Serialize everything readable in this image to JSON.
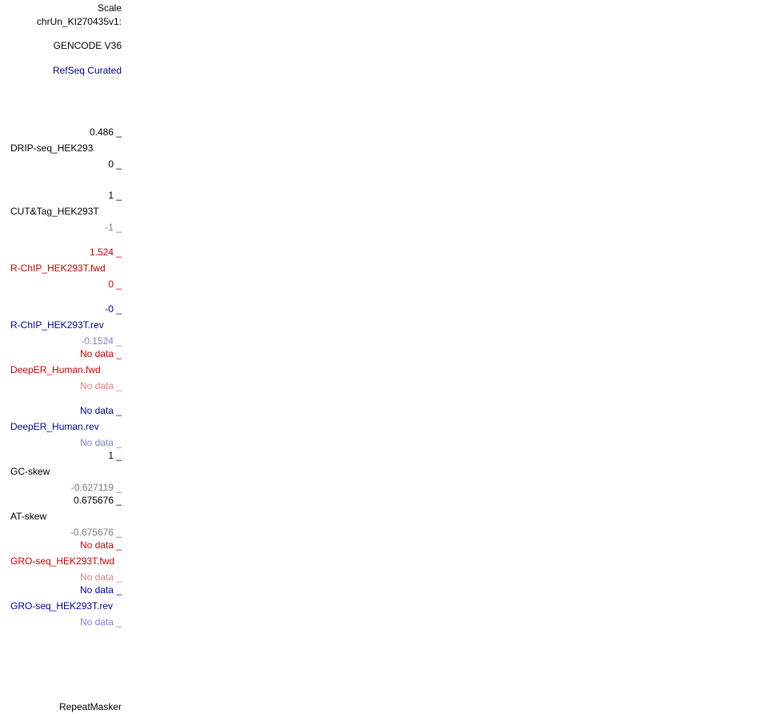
{
  "colors": {
    "black": "#000000",
    "grey": "#7a7a7a",
    "red": "#cc0000",
    "lightred": "#e08080",
    "blue": "#0000a0",
    "lightblue": "#8080e0",
    "navy": "#000080"
  },
  "header": {
    "scale": "Scale",
    "chrom": "chrUn_KI270435v1:",
    "gencode": "GENCODE V36",
    "refseq": "RefSeq Curated"
  },
  "tracks": [
    {
      "max": "0.486 _",
      "name": "DRIP-seq_HEK293",
      "min": "0 _"
    },
    {
      "max": "1 _",
      "name": "CUT&Tag_HEK293T",
      "min": "-1 _"
    },
    {
      "max": "1.524 _",
      "name": "R-ChIP_HEK293T.fwd",
      "min": "0 _"
    },
    {
      "max": "-0 _",
      "name": "R-ChIP_HEK293T.rev",
      "min": "-0.1524 _"
    },
    {
      "max": "No data _",
      "name": "DeepER_Human.fwd",
      "min": "No data _"
    },
    {
      "max": "No data _",
      "name": "DeepER_Human.rev",
      "min": "No data _"
    },
    {
      "max": "1 _",
      "name": "GC-skew",
      "min": "-0.627119 _"
    },
    {
      "max": "0.675676 _",
      "name": "AT-skew",
      "min": "-0.675676 _"
    },
    {
      "max": "No data _",
      "name": "GRO-seq_HEK293T.fwd",
      "min": "No data _"
    },
    {
      "max": "No data _",
      "name": "GRO-seq_HEK293T.rev",
      "min": "No data _"
    }
  ],
  "footer": {
    "repeatmasker": "RepeatMasker"
  }
}
